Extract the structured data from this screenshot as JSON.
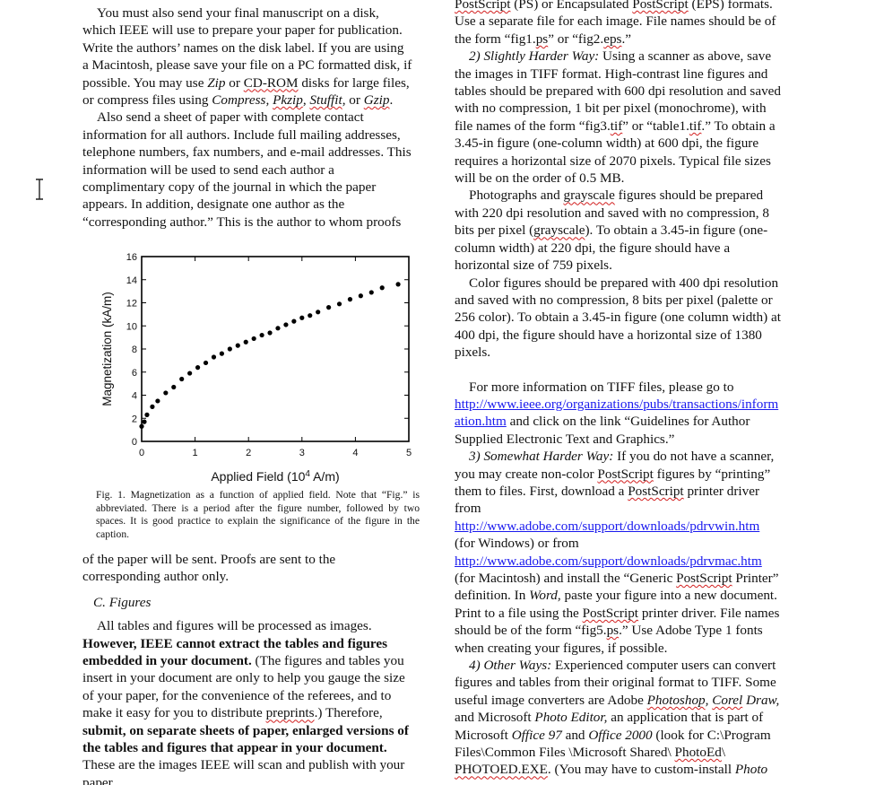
{
  "left_column": {
    "top_paragraph": {
      "l1": "You must also send your final manuscript on a disk,",
      "l2": "which IEEE will use to prepare your paper for publication.",
      "l3": "Write the authors’ names on the disk label. If you are using",
      "l4": "a Macintosh, please save your file on a PC formatted disk, if",
      "l5a": "possible. You may use ",
      "l5b": "Zip",
      "l5c": " or ",
      "l5d": "CD-ROM",
      "l5e": " disks for large files,",
      "l6a": "or compress files using ",
      "l6b": "Compress, ",
      "l6c": "Pkzip",
      "l6d": ", ",
      "l6e": "Stuffit",
      "l6f": ", or ",
      "l6g": "Gzip",
      "l6h": "."
    },
    "contact_paragraph": {
      "l1": "Also send a sheet of paper with complete contact",
      "l2": "information for all authors. Include full mailing addresses,",
      "l3": "telephone numbers, fax numbers, and e-mail addresses. This",
      "l4": "information will be used to send each author a",
      "l5": "complimentary copy of the journal in which the paper",
      "l6": "appears. In addition, designate one author as the",
      "l7": "“corresponding author.” This is the author to whom proofs"
    },
    "figure_caption": "Fig. 1. Magnetization as a function of applied field. Note that “Fig.” is abbreviated. There is a period after the figure number, followed by two spaces. It is good practice to explain the significance of the figure in the caption.",
    "after_figure": {
      "l1": "of the paper will be sent. Proofs are sent to the",
      "l2": "corresponding author only."
    },
    "section_heading": "C. Figures",
    "figures_paragraph": {
      "l1": "All tables and figures will be processed as images.",
      "l2": "However, IEEE cannot extract the tables and figures",
      "l3a": "embedded in your document.",
      "l3b": " (The figures and tables you",
      "l4": "insert in your document are only to help you gauge the size",
      "l5": "of your paper, for the convenience of the referees, and to",
      "l6a": "make it easy for you to distribute ",
      "l6b": "preprints",
      "l6c": ".) Therefore,",
      "l7": "submit, on separate sheets of paper, enlarged versions of",
      "l8": "the tables and figures that appear in your document.",
      "l9": "These are the images IEEE will scan and publish with your",
      "l10": "paper."
    }
  },
  "right_column": {
    "top_paragraph": {
      "l1a": "PostScript",
      "l1b": " (PS) or Encapsulated ",
      "l1c": "PostScript",
      "l1d": " (EPS) formats.",
      "l2": "Use a separate file for each image. File names should be of",
      "l3a": "the form “fig1.",
      "l3b": "ps",
      "l3c": "” or “fig2.",
      "l3d": "eps",
      "l3e": ".”"
    },
    "way2": {
      "l1a": "2) Slightly Harder Way:",
      "l1b": " Using a scanner as above, save",
      "l2": "the images in TIFF format. High-contrast line figures and",
      "l3": "tables should be prepared with 600 dpi resolution and saved",
      "l4": "with no compression, 1 bit per pixel (monochrome), with",
      "l5a": "file names of the form “fig3.",
      "l5b": "tif",
      "l5c": "” or “table1.",
      "l5d": "tif",
      "l5e": ".” To obtain a",
      "l6": "3.45-in figure (one-column width) at 600 dpi, the figure",
      "l7": "requires a horizontal size of 2070 pixels. Typical file sizes",
      "l8": "will be on the order of 0.5 MB."
    },
    "grayscale": {
      "l1a": "Photographs and ",
      "l1b": "grayscale",
      "l1c": " figures should be prepared",
      "l2": "with 220 dpi resolution and saved with no compression, 8",
      "l3a": "bits per pixel (",
      "l3b": "grayscale",
      "l3c": "). To obtain a 3.45-in figure (one-",
      "l4": "column width) at 220 dpi, the figure should have a",
      "l5": "horizontal size of 759 pixels."
    },
    "color": {
      "l1": "Color figures should be prepared with 400 dpi resolution",
      "l2": "and saved with no compression, 8 bits per pixel (palette or",
      "l3": "256 color). To obtain a 3.45-in figure (one column width) at",
      "l4": "400 dpi, the figure should have a horizontal size of 1380",
      "l5": "pixels."
    },
    "tiff_info": {
      "l1": "For more information on TIFF files, please go to",
      "link1a": "http://www.ieee.org/organizations/pubs/transactions/inform",
      "link1b": "ation.htm",
      "l3": " and click on the link “Guidelines for Author",
      "l4": "Supplied Electronic Text and Graphics.”"
    },
    "way3": {
      "l1a": "3) Somewhat Harder Way:",
      "l1b": " If you do not have a scanner,",
      "l2a": "you may create non-color ",
      "l2b": "PostScript",
      "l2c": " figures by “printing”",
      "l3a": "them to files. First, download a ",
      "l3b": "PostScript",
      "l3c": " printer driver",
      "l4": "from",
      "link_win": "http://www.adobe.com/support/downloads/pdrvwin.htm",
      "l6": "(for Windows) or from",
      "link_mac": "http://www.adobe.com/support/downloads/pdrvmac.htm",
      "l8a": "(for Macintosh) and install the “Generic ",
      "l8b": "PostScript",
      "l8c": " Printer”",
      "l9a": "definition. In ",
      "l9b": "Word,",
      "l9c": " paste your figure into a new document.",
      "l10a": "Print to a file using the ",
      "l10b": "PostScript",
      "l10c": " printer driver. File names",
      "l11a": "should be of the form “fig5.",
      "l11b": "ps",
      "l11c": ".” Use Adobe Type 1 fonts",
      "l12": "when creating your figures, if possible."
    },
    "way4": {
      "l1a": "4) Other Ways:",
      "l1b": " Experienced computer users can convert",
      "l2": "figures and tables from their original format to TIFF. Some",
      "l3a": "useful image converters are Adobe ",
      "l3b": "Photoshop",
      "l3c": ", ",
      "l3d": "Corel",
      "l3e": " Draw,",
      "l4a": "and Microsoft ",
      "l4b": "Photo Editor,",
      "l4c": " an application that is part of",
      "l5a": "Microsoft ",
      "l5b": "Office 97",
      "l5c": " and ",
      "l5d": "Office 2000",
      "l5e": " (look for C:\\Program",
      "l6a": "Files\\Common Files \\Microsoft Shared\\ ",
      "l6b": "PhotoEd",
      "l6c": "\\",
      "l7a": "PHOTOED.EXE",
      "l7b": ". (You may have to custom-install ",
      "l7c": "Photo"
    }
  },
  "chart_data": {
    "type": "scatter",
    "xlabel": "Applied Field (10",
    "xlabel_sup": "4",
    "xlabel_tail": " A/m)",
    "ylabel": "Magnetization (kA/m)",
    "xlim": [
      0,
      5
    ],
    "ylim": [
      0,
      16
    ],
    "xticks": [
      0,
      1,
      2,
      3,
      4,
      5
    ],
    "yticks": [
      0,
      2,
      4,
      6,
      8,
      10,
      12,
      14,
      16
    ],
    "grid": false,
    "series": [
      {
        "x": [
          0.0,
          0.05,
          0.1,
          0.2,
          0.3,
          0.45,
          0.6,
          0.75,
          0.9,
          1.05,
          1.2,
          1.35,
          1.5,
          1.65,
          1.8,
          1.95,
          2.1,
          2.25,
          2.4,
          2.55,
          2.7,
          2.85,
          3.0,
          3.15,
          3.3,
          3.5,
          3.7,
          3.9,
          4.1,
          4.3,
          4.5,
          4.8
        ],
        "y": [
          1.3,
          1.7,
          2.3,
          3.0,
          3.5,
          4.2,
          4.7,
          5.4,
          5.9,
          6.4,
          6.8,
          7.3,
          7.6,
          8.0,
          8.3,
          8.6,
          8.9,
          9.2,
          9.4,
          9.8,
          10.1,
          10.4,
          10.7,
          10.9,
          11.2,
          11.6,
          11.9,
          12.3,
          12.6,
          12.9,
          13.3,
          13.6
        ]
      }
    ]
  },
  "colors": {
    "text": "#111111",
    "link": "#1a1aee",
    "spellcheck": "#d21f1f"
  }
}
